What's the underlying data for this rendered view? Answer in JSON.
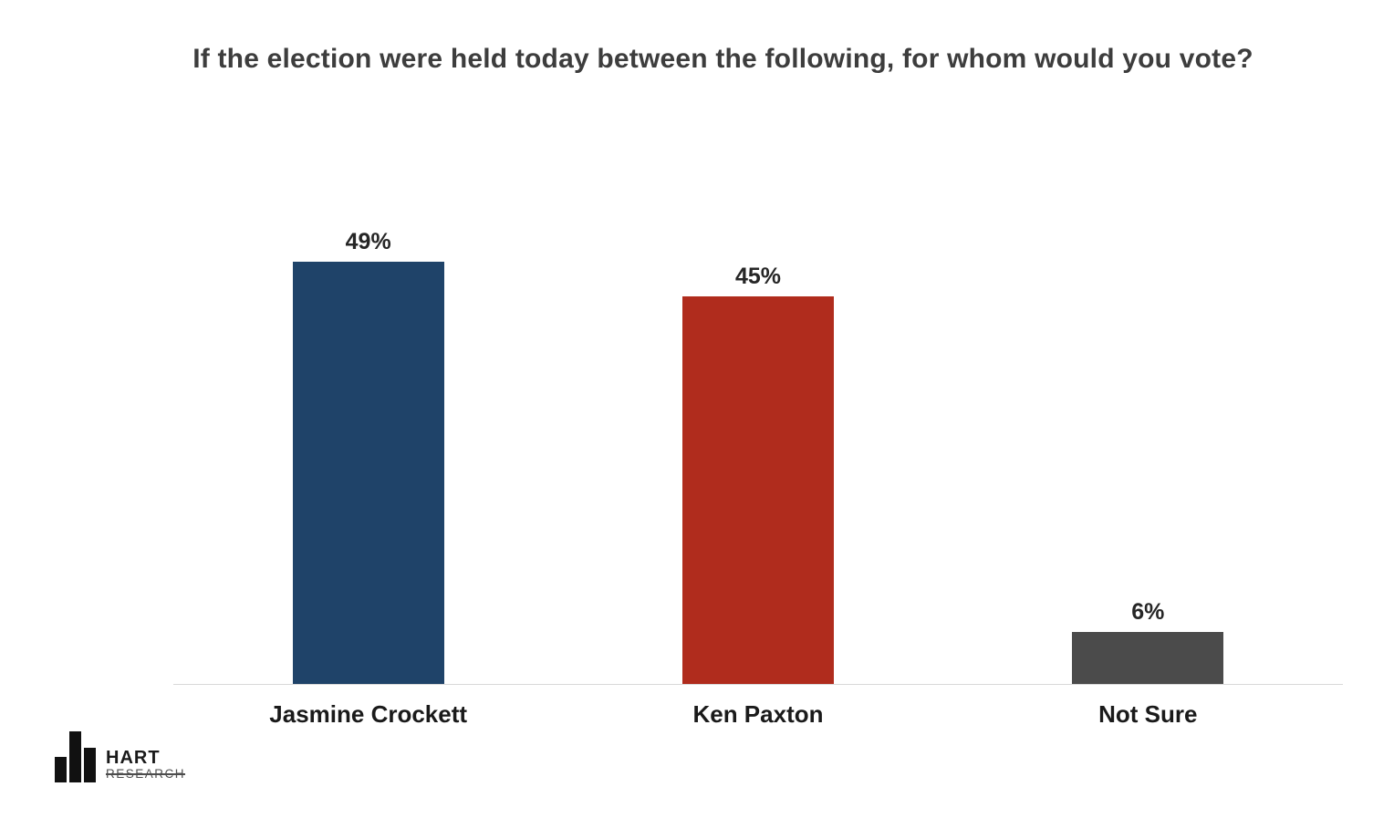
{
  "chart_data": {
    "type": "bar",
    "title": "If the election were held today between the following, for whom would you vote?",
    "categories": [
      "Jasmine Crockett",
      "Ken Paxton",
      "Not Sure"
    ],
    "values": [
      49,
      45,
      6
    ],
    "value_labels": [
      "49%",
      "45%",
      "6%"
    ],
    "colors": [
      "#1F4369",
      "#B02C1D",
      "#4B4B4B"
    ],
    "xlabel": "",
    "ylabel": "",
    "ylim": [
      0,
      55
    ],
    "grid": false,
    "legend": false,
    "baseline_color": "#d9d9d9"
  },
  "footer": {
    "logo_line1": "HART",
    "logo_line2": "RESEARCH"
  }
}
